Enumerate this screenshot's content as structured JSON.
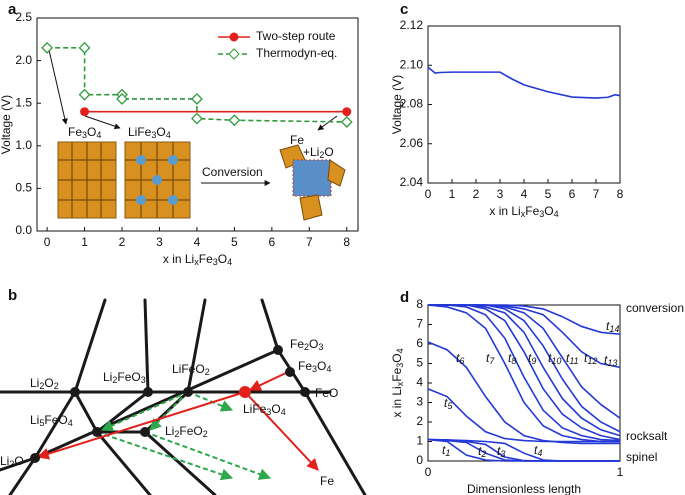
{
  "chart_data": [
    {
      "label": "a",
      "type": "line",
      "xlabel": "x in LixFe3O4",
      "ylabel": "Voltage (V)",
      "xlim": [
        -0.27,
        8.3
      ],
      "xticks": [
        0,
        1,
        2,
        3,
        4,
        5,
        6,
        7,
        8
      ],
      "ylim": [
        0,
        2.5
      ],
      "yticks": [
        {
          "value": 0,
          "label": "0.0"
        },
        0.5,
        {
          "value": 1,
          "label": "1.0"
        },
        1.5,
        {
          "value": 2,
          "label": "2.0"
        },
        2.5
      ],
      "legend": "upper right",
      "series": [
        {
          "name": "Two-step route",
          "color": "#e3211c",
          "marker": "filled-circle",
          "linestyle": "solid",
          "x": [
            1,
            8
          ],
          "values": [
            1.4,
            1.4
          ]
        },
        {
          "name": "Thermodyn-eq.",
          "color": "#2e9a3a",
          "marker": "open-diamond",
          "linestyle": "dashed",
          "x": [
            0,
            1,
            1,
            2,
            2,
            4,
            4,
            5,
            8
          ],
          "values": [
            2.15,
            2.15,
            1.6,
            1.6,
            1.55,
            1.55,
            1.32,
            1.3,
            1.28
          ]
        }
      ],
      "annotations": [
        "Fe3O4",
        "LiFe3O4",
        "Conversion",
        "Fe",
        "+Li2O"
      ]
    },
    {
      "label": "c",
      "type": "line",
      "xlabel": "x in LixFe3O4",
      "ylabel": "Voltage (V)",
      "xlim": [
        0,
        8
      ],
      "xticks": [
        0,
        1,
        2,
        3,
        4,
        5,
        6,
        7,
        8
      ],
      "ylim": [
        2.04,
        2.12
      ],
      "yticks": [
        2.04,
        2.06,
        2.08,
        {
          "value": 2.1,
          "label": "2.10"
        },
        2.12
      ],
      "x": [
        0,
        0.3,
        0.5,
        1,
        2,
        3,
        3.5,
        4,
        5,
        6,
        7,
        7.5,
        7.8,
        8
      ],
      "series": [
        {
          "color": "#2438d6",
          "values": [
            2.099,
            2.096,
            2.0963,
            2.0965,
            2.0965,
            2.0965,
            2.093,
            2.09,
            2.0865,
            2.0838,
            2.0833,
            2.0837,
            2.085,
            2.0845
          ]
        }
      ]
    },
    {
      "label": "d",
      "type": "line",
      "xlabel": "Dimensionless length",
      "ylabel": "x in LixFe3O4",
      "xlim": [
        0,
        1
      ],
      "xticks": [
        0,
        1
      ],
      "ylim": [
        0,
        8
      ],
      "yticks": [
        0,
        1,
        2,
        3,
        4,
        5,
        6,
        7,
        8
      ],
      "x": [
        0,
        0.1,
        0.2,
        0.3,
        0.4,
        0.5,
        0.6,
        0.7,
        0.8,
        0.9,
        1
      ],
      "series": [
        {
          "name": "t1",
          "color": "#2438d6",
          "values": [
            1.1,
            1.0,
            0.3,
            0.05,
            0,
            0,
            0,
            0,
            0,
            0,
            0
          ]
        },
        {
          "name": "t2",
          "color": "#2438d6",
          "values": [
            1.1,
            1.05,
            0.95,
            0.4,
            0.05,
            0,
            0,
            0,
            0,
            0,
            0
          ]
        },
        {
          "name": "t3",
          "color": "#2438d6",
          "values": [
            1.1,
            1.08,
            1.0,
            0.85,
            0.2,
            0.02,
            0,
            0,
            0,
            0,
            0
          ]
        },
        {
          "name": "t4",
          "color": "#2438d6",
          "values": [
            1.1,
            1.08,
            1.05,
            1.0,
            0.9,
            0.4,
            0.05,
            0,
            0,
            0,
            0
          ]
        },
        {
          "name": "t5",
          "color": "#2438d6",
          "values": [
            3.7,
            3.3,
            2.3,
            1.5,
            1.15,
            1.05,
            1.0,
            1.0,
            1.0,
            1.0,
            1.0
          ]
        },
        {
          "name": "t6",
          "color": "#2438d6",
          "values": [
            6.1,
            5.7,
            4.8,
            3.3,
            2.0,
            1.3,
            1.05,
            0.95,
            0.9,
            0.9,
            0.9
          ]
        },
        {
          "name": "t7",
          "color": "#2438d6",
          "values": [
            8,
            7.9,
            7.6,
            6.8,
            5.0,
            3.0,
            1.8,
            1.3,
            1.1,
            1.0,
            1.0
          ]
        },
        {
          "name": "t8",
          "color": "#2438d6",
          "values": [
            8,
            8,
            7.9,
            7.5,
            6.3,
            4.3,
            2.6,
            1.7,
            1.3,
            1.1,
            1.05
          ]
        },
        {
          "name": "t9",
          "color": "#2438d6",
          "values": [
            8,
            8,
            8,
            7.8,
            7.2,
            5.6,
            3.7,
            2.4,
            1.7,
            1.3,
            1.1
          ]
        },
        {
          "name": "t10",
          "color": "#2438d6",
          "values": [
            8,
            8,
            8,
            7.9,
            7.6,
            6.6,
            4.8,
            3.2,
            2.2,
            1.6,
            1.3
          ]
        },
        {
          "name": "t11",
          "color": "#2438d6",
          "values": [
            8,
            8,
            8,
            8,
            7.8,
            7.2,
            5.9,
            4.2,
            2.8,
            2.0,
            1.5
          ]
        },
        {
          "name": "t12",
          "color": "#2438d6",
          "values": [
            8,
            8,
            8,
            8,
            7.9,
            7.6,
            6.8,
            5.3,
            3.8,
            2.9,
            2.2
          ]
        },
        {
          "name": "t13",
          "color": "#2438d6",
          "values": [
            8,
            8,
            8,
            8,
            7.95,
            7.8,
            7.5,
            6.6,
            5.6,
            5.0,
            4.8
          ]
        },
        {
          "name": "t14",
          "color": "#2438d6",
          "values": [
            8,
            8,
            8,
            8,
            8,
            7.95,
            7.8,
            7.4,
            6.9,
            6.6,
            6.5
          ]
        }
      ],
      "annotations": [
        "conversion",
        "rocksalt",
        "spinel"
      ]
    }
  ],
  "diagram": {
    "label": "b",
    "nodes": [
      "Li2O2",
      "Li2FeO3",
      "LiFeO2",
      "Fe2O3",
      "Fe3O4",
      "FeO",
      "Li5FeO4",
      "Li2FeO2",
      "LiFe3O4",
      "Li2O",
      "Fe"
    ]
  }
}
